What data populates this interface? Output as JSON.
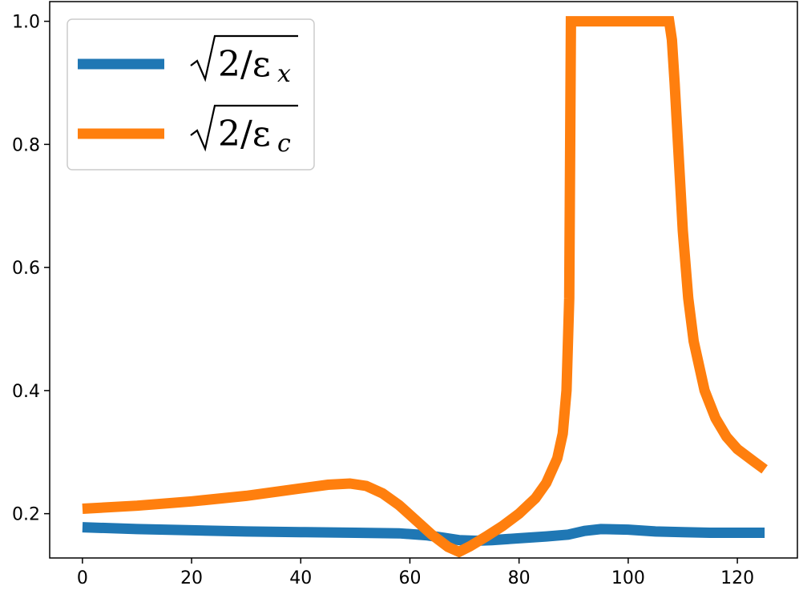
{
  "chart_data": {
    "type": "line",
    "title": "",
    "xlabel": "",
    "ylabel": "",
    "xlim": [
      -6,
      131
    ],
    "ylim": [
      0.128,
      1.032
    ],
    "xticks": [
      0,
      20,
      40,
      60,
      80,
      100,
      120
    ],
    "yticks": [
      0.2,
      0.4,
      0.6,
      0.8,
      1.0
    ],
    "xtick_labels": [
      "0",
      "20",
      "40",
      "60",
      "80",
      "100",
      "120"
    ],
    "ytick_labels": [
      "0.2",
      "0.4",
      "0.6",
      "0.8",
      "1.0"
    ],
    "grid": false,
    "legend_position": "top-left",
    "series": [
      {
        "name": "√2/εx",
        "label_base": "2/ε",
        "label_sub": "x",
        "color": "#1f77b4",
        "x": [
          0,
          10,
          20,
          30,
          40,
          50,
          58,
          63,
          66,
          69,
          72,
          75,
          80,
          85,
          89,
          92,
          95,
          100,
          105,
          110,
          115,
          120,
          125
        ],
        "y": [
          0.178,
          0.175,
          0.173,
          0.171,
          0.17,
          0.169,
          0.168,
          0.165,
          0.161,
          0.157,
          0.156,
          0.157,
          0.16,
          0.163,
          0.166,
          0.172,
          0.175,
          0.174,
          0.171,
          0.17,
          0.169,
          0.169,
          0.169
        ]
      },
      {
        "name": "√2/εc",
        "label_base": "2/ε",
        "label_sub": "c",
        "color": "#ff7f0e",
        "x": [
          0,
          10,
          20,
          30,
          40,
          45,
          49,
          52,
          55,
          58,
          61,
          64,
          67,
          69,
          71,
          74,
          77,
          80,
          83,
          85,
          87,
          88,
          88.7,
          89.2,
          89.5,
          90,
          95,
          100,
          105,
          107.5,
          108,
          108.5,
          109,
          110,
          111,
          112,
          114,
          116,
          118,
          120,
          123,
          125
        ],
        "y": [
          0.208,
          0.213,
          0.22,
          0.229,
          0.241,
          0.247,
          0.249,
          0.245,
          0.233,
          0.214,
          0.19,
          0.166,
          0.146,
          0.138,
          0.147,
          0.163,
          0.18,
          0.2,
          0.225,
          0.25,
          0.29,
          0.33,
          0.4,
          0.55,
          1.0,
          1.0,
          1.0,
          1.0,
          1.0,
          1.0,
          0.97,
          0.9,
          0.82,
          0.66,
          0.55,
          0.48,
          0.4,
          0.355,
          0.325,
          0.305,
          0.285,
          0.272
        ]
      }
    ]
  }
}
